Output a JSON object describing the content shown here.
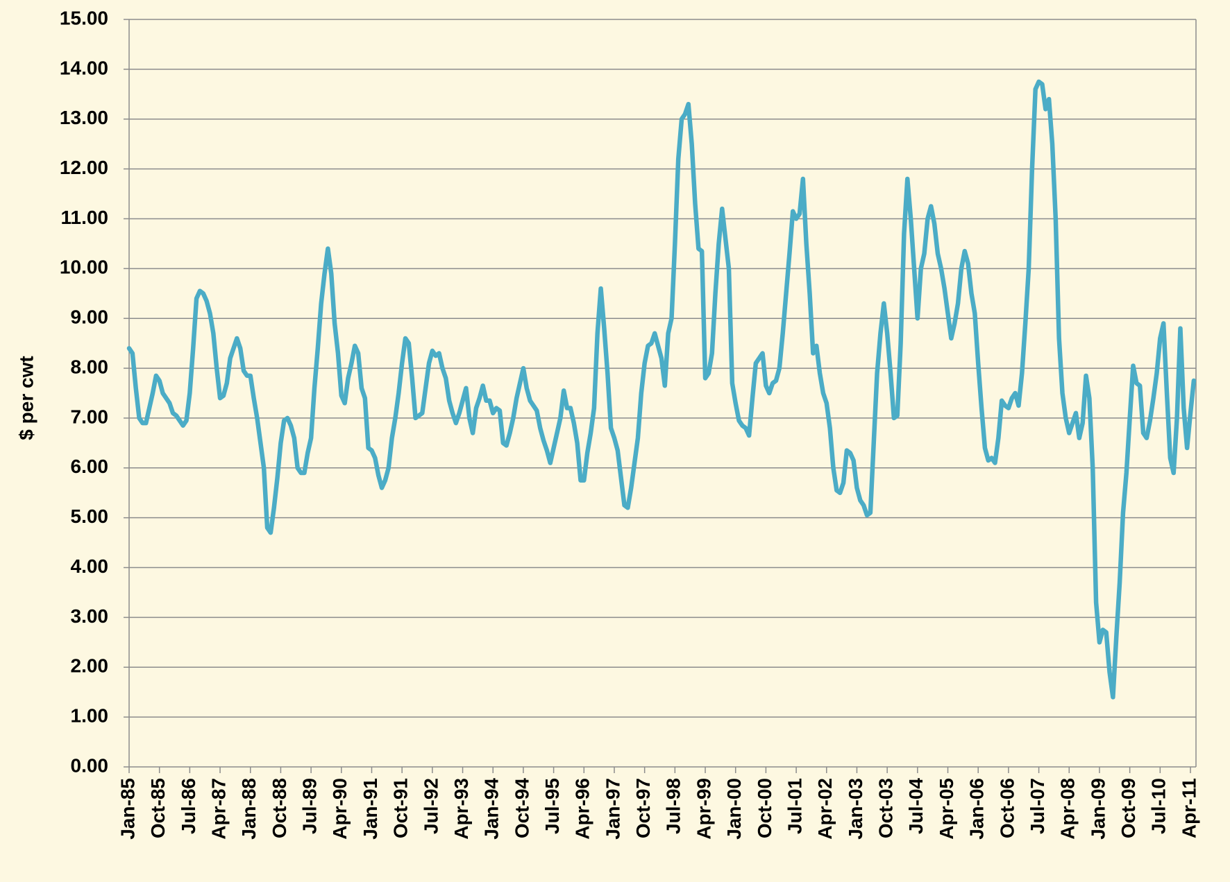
{
  "chart_data": {
    "type": "line",
    "y_label": "$ per cwt",
    "color": "#4bacc6",
    "grid": true,
    "ylim": [
      0,
      15
    ],
    "yticks": [
      {
        "value": 0,
        "label": "0.00"
      },
      {
        "value": 1,
        "label": "1.00"
      },
      {
        "value": 2,
        "label": "2.00"
      },
      {
        "value": 3,
        "label": "3.00"
      },
      {
        "value": 4,
        "label": "4.00"
      },
      {
        "value": 5,
        "label": "5.00"
      },
      {
        "value": 6,
        "label": "6.00"
      },
      {
        "value": 7,
        "label": "7.00"
      },
      {
        "value": 8,
        "label": "8.00"
      },
      {
        "value": 9,
        "label": "9.00"
      },
      {
        "value": 10,
        "label": "10.00"
      },
      {
        "value": 11,
        "label": "11.00"
      },
      {
        "value": 12,
        "label": "12.00"
      },
      {
        "value": 13,
        "label": "13.00"
      },
      {
        "value": 14,
        "label": "14.00"
      },
      {
        "value": 15,
        "label": "15.00"
      }
    ],
    "categories": [
      "Jan-85",
      null,
      null,
      null,
      null,
      null,
      null,
      null,
      null,
      "Oct-85",
      null,
      null,
      null,
      null,
      null,
      null,
      null,
      null,
      "Jul-86",
      null,
      null,
      null,
      null,
      null,
      null,
      null,
      null,
      "Apr-87",
      null,
      null,
      null,
      null,
      null,
      null,
      null,
      null,
      "Jan-88",
      null,
      null,
      null,
      null,
      null,
      null,
      null,
      null,
      "Oct-88",
      null,
      null,
      null,
      null,
      null,
      null,
      null,
      null,
      "Jul-89",
      null,
      null,
      null,
      null,
      null,
      null,
      null,
      null,
      "Apr-90",
      null,
      null,
      null,
      null,
      null,
      null,
      null,
      null,
      "Jan-91",
      null,
      null,
      null,
      null,
      null,
      null,
      null,
      null,
      "Oct-91",
      null,
      null,
      null,
      null,
      null,
      null,
      null,
      null,
      "Jul-92",
      null,
      null,
      null,
      null,
      null,
      null,
      null,
      null,
      "Apr-93",
      null,
      null,
      null,
      null,
      null,
      null,
      null,
      null,
      "Jan-94",
      null,
      null,
      null,
      null,
      null,
      null,
      null,
      null,
      "Oct-94",
      null,
      null,
      null,
      null,
      null,
      null,
      null,
      null,
      "Jul-95",
      null,
      null,
      null,
      null,
      null,
      null,
      null,
      null,
      "Apr-96",
      null,
      null,
      null,
      null,
      null,
      null,
      null,
      null,
      "Jan-97",
      null,
      null,
      null,
      null,
      null,
      null,
      null,
      null,
      "Oct-97",
      null,
      null,
      null,
      null,
      null,
      null,
      null,
      null,
      "Jul-98",
      null,
      null,
      null,
      null,
      null,
      null,
      null,
      null,
      "Apr-99",
      null,
      null,
      null,
      null,
      null,
      null,
      null,
      null,
      "Jan-00",
      null,
      null,
      null,
      null,
      null,
      null,
      null,
      null,
      "Oct-00",
      null,
      null,
      null,
      null,
      null,
      null,
      null,
      null,
      "Jul-01",
      null,
      null,
      null,
      null,
      null,
      null,
      null,
      null,
      "Apr-02",
      null,
      null,
      null,
      null,
      null,
      null,
      null,
      null,
      "Jan-03",
      null,
      null,
      null,
      null,
      null,
      null,
      null,
      null,
      "Oct-03",
      null,
      null,
      null,
      null,
      null,
      null,
      null,
      null,
      "Jul-04",
      null,
      null,
      null,
      null,
      null,
      null,
      null,
      null,
      "Apr-05",
      null,
      null,
      null,
      null,
      null,
      null,
      null,
      null,
      "Jan-06",
      null,
      null,
      null,
      null,
      null,
      null,
      null,
      null,
      "Oct-06",
      null,
      null,
      null,
      null,
      null,
      null,
      null,
      null,
      "Jul-07",
      null,
      null,
      null,
      null,
      null,
      null,
      null,
      null,
      "Apr-08",
      null,
      null,
      null,
      null,
      null,
      null,
      null,
      null,
      "Jan-09",
      null,
      null,
      null,
      null,
      null,
      null,
      null,
      null,
      "Oct-09",
      null,
      null,
      null,
      null,
      null,
      null,
      null,
      null,
      "Jul-10",
      null,
      null,
      null,
      null,
      null,
      null,
      null,
      null,
      "Apr-11",
      null
    ],
    "values": [
      8.4,
      8.3,
      7.6,
      7.0,
      6.9,
      6.9,
      7.2,
      7.5,
      7.85,
      7.75,
      7.5,
      7.4,
      7.3,
      7.1,
      7.05,
      6.95,
      6.85,
      6.95,
      7.5,
      8.4,
      9.4,
      9.55,
      9.5,
      9.35,
      9.1,
      8.7,
      8.0,
      7.4,
      7.45,
      7.7,
      8.2,
      8.4,
      8.6,
      8.4,
      7.95,
      7.85,
      7.85,
      7.4,
      7.0,
      6.5,
      6.0,
      4.8,
      4.7,
      5.2,
      5.8,
      6.5,
      6.95,
      7.0,
      6.85,
      6.6,
      6.0,
      5.9,
      5.9,
      6.3,
      6.6,
      7.6,
      8.4,
      9.3,
      9.9,
      10.4,
      9.9,
      8.9,
      8.3,
      7.45,
      7.3,
      7.8,
      8.1,
      8.45,
      8.3,
      7.6,
      7.4,
      6.4,
      6.35,
      6.2,
      5.85,
      5.6,
      5.75,
      6.0,
      6.6,
      7.0,
      7.5,
      8.1,
      8.6,
      8.5,
      7.8,
      7.0,
      7.05,
      7.1,
      7.6,
      8.1,
      8.35,
      8.25,
      8.3,
      8.0,
      7.8,
      7.35,
      7.1,
      6.9,
      7.1,
      7.35,
      7.6,
      7.0,
      6.7,
      7.2,
      7.4,
      7.65,
      7.35,
      7.35,
      7.1,
      7.2,
      7.15,
      6.5,
      6.45,
      6.7,
      7.0,
      7.4,
      7.7,
      8.0,
      7.6,
      7.35,
      7.25,
      7.15,
      6.8,
      6.55,
      6.35,
      6.1,
      6.4,
      6.7,
      7.0,
      7.55,
      7.2,
      7.2,
      6.9,
      6.5,
      5.75,
      5.75,
      6.3,
      6.7,
      7.2,
      8.7,
      9.6,
      8.8,
      7.9,
      6.8,
      6.6,
      6.35,
      5.8,
      5.25,
      5.2,
      5.6,
      6.1,
      6.6,
      7.5,
      8.1,
      8.45,
      8.5,
      8.7,
      8.45,
      8.2,
      7.65,
      8.7,
      9.0,
      10.5,
      12.2,
      13.0,
      13.1,
      13.3,
      12.5,
      11.3,
      10.4,
      10.35,
      7.8,
      7.9,
      8.3,
      9.5,
      10.5,
      11.2,
      10.6,
      10.0,
      7.7,
      7.3,
      6.95,
      6.85,
      6.8,
      6.65,
      7.4,
      8.1,
      8.2,
      8.3,
      7.65,
      7.5,
      7.7,
      7.75,
      8.0,
      8.7,
      9.5,
      10.3,
      11.15,
      11.0,
      11.1,
      11.8,
      10.5,
      9.5,
      8.3,
      8.45,
      7.9,
      7.5,
      7.3,
      6.8,
      6.0,
      5.55,
      5.5,
      5.7,
      6.35,
      6.3,
      6.15,
      5.6,
      5.35,
      5.25,
      5.05,
      5.1,
      6.5,
      7.9,
      8.7,
      9.3,
      8.7,
      7.9,
      7.0,
      7.05,
      8.5,
      10.7,
      11.8,
      11.0,
      10.0,
      9.0,
      10.0,
      10.3,
      11.0,
      11.25,
      10.9,
      10.3,
      10.0,
      9.6,
      9.1,
      8.6,
      8.9,
      9.3,
      10.0,
      10.35,
      10.1,
      9.5,
      9.1,
      8.1,
      7.2,
      6.4,
      6.15,
      6.2,
      6.1,
      6.6,
      7.35,
      7.25,
      7.2,
      7.4,
      7.5,
      7.25,
      7.9,
      8.9,
      10.0,
      12.0,
      13.6,
      13.75,
      13.7,
      13.2,
      13.4,
      12.5,
      11.0,
      8.6,
      7.5,
      7.0,
      6.7,
      6.9,
      7.1,
      6.6,
      6.9,
      7.85,
      7.4,
      6.0,
      3.3,
      2.5,
      2.75,
      2.7,
      1.9,
      1.4,
      2.6,
      3.7,
      5.1,
      5.9,
      7.0,
      8.05,
      7.7,
      7.65,
      6.7,
      6.6,
      6.95,
      7.4,
      7.9,
      8.6,
      8.9,
      7.5,
      6.2,
      5.9,
      7.0,
      8.8,
      7.2,
      6.4,
      7.1,
      7.75
    ]
  }
}
